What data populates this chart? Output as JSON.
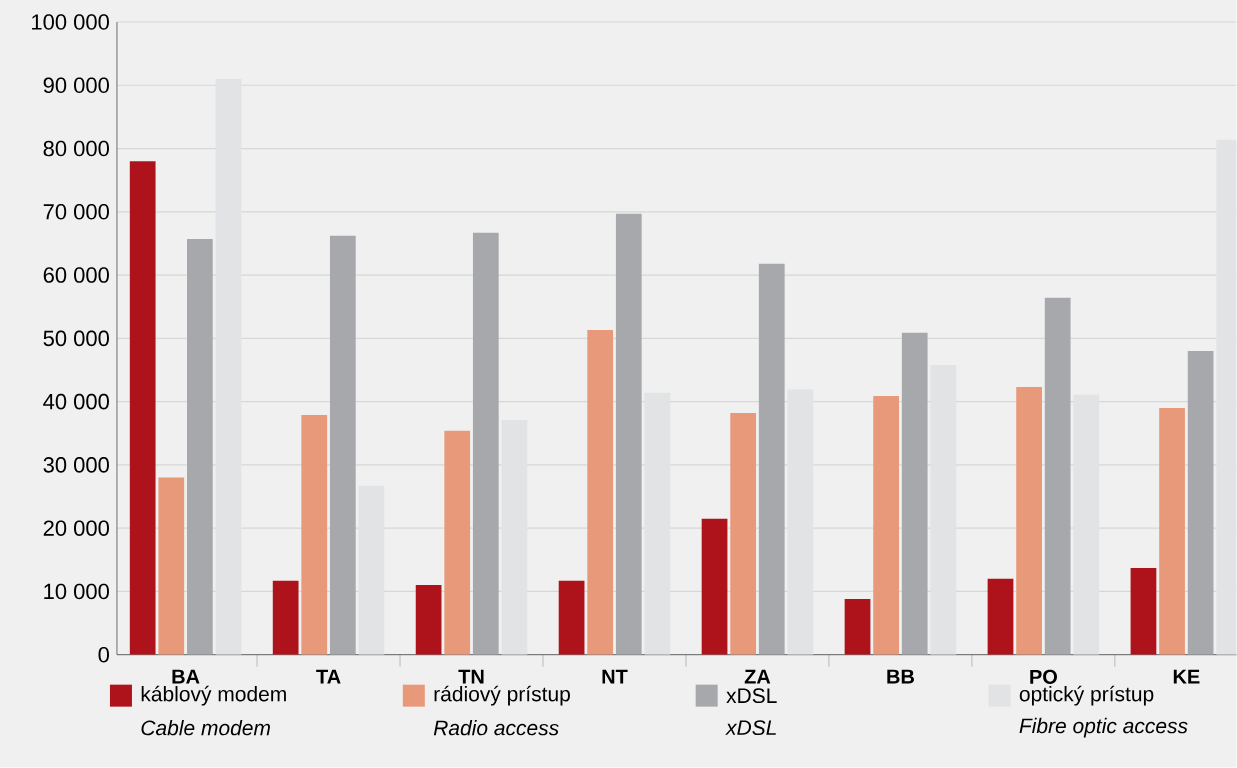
{
  "chart_data": {
    "type": "bar",
    "categories": [
      "BA",
      "TA",
      "TN",
      "NT",
      "ZA",
      "BB",
      "PO",
      "KE"
    ],
    "series": [
      {
        "name": "káblový modem",
        "color": "#ae131b",
        "values": [
          78000,
          11700,
          11000,
          11700,
          21500,
          8800,
          12000,
          13700
        ]
      },
      {
        "name": "rádiový prístup",
        "color": "#e8997a",
        "values": [
          28000,
          37900,
          35400,
          51300,
          38200,
          40900,
          42300,
          39000
        ]
      },
      {
        "name": "xDSL",
        "color": "#a7a8ab",
        "values": [
          65700,
          66200,
          66700,
          69700,
          61800,
          50900,
          56400,
          48000
        ]
      },
      {
        "name": "optický prístup",
        "color": "#e2e3e5",
        "values": [
          91000,
          26700,
          37100,
          41400,
          41900,
          45800,
          41100,
          81400
        ]
      }
    ],
    "ylim": [
      0,
      100000
    ],
    "yticks": [
      {
        "value": 0,
        "label": "0"
      },
      {
        "value": 10000,
        "label": "10 000"
      },
      {
        "value": 20000,
        "label": "20 000"
      },
      {
        "value": 30000,
        "label": "30 000"
      },
      {
        "value": 40000,
        "label": "40 000"
      },
      {
        "value": 50000,
        "label": "50 000"
      },
      {
        "value": 60000,
        "label": "60 000"
      },
      {
        "value": 70000,
        "label": "70 000"
      },
      {
        "value": 80000,
        "label": "80 000"
      },
      {
        "value": 90000,
        "label": "90 000"
      },
      {
        "value": 100000,
        "label": "100 000"
      }
    ],
    "grid": "y",
    "legend": "bottom",
    "annotations": [
      "Cable modem",
      "Radio access",
      "xDSL",
      "Fibre optic access"
    ]
  }
}
